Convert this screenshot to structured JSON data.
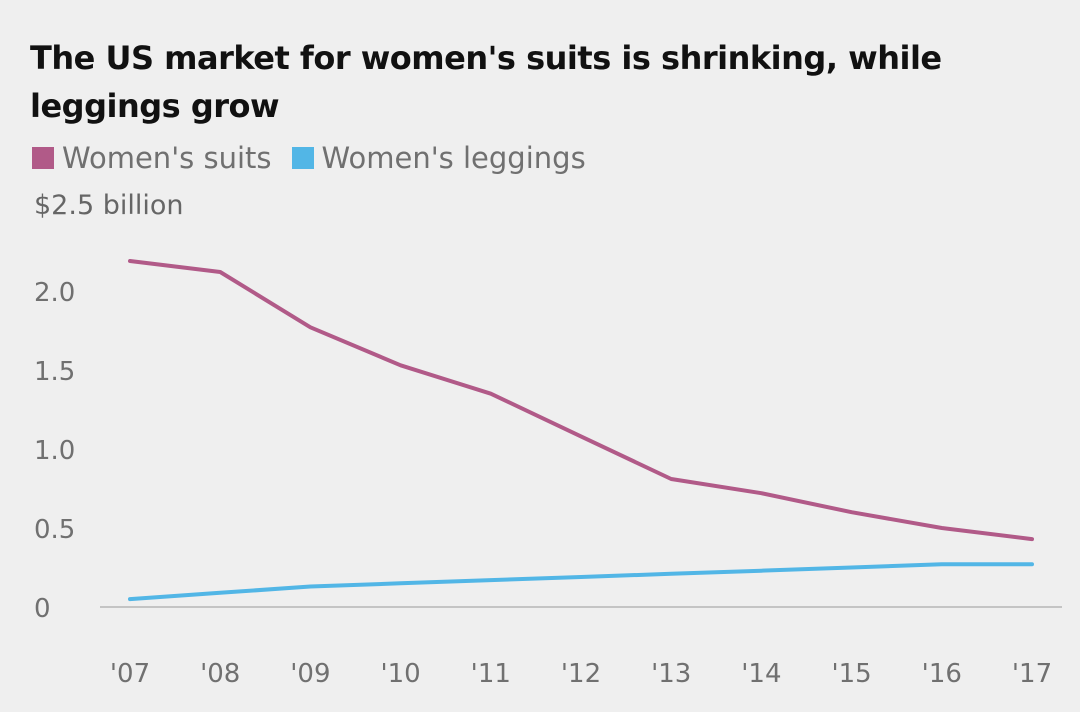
{
  "chart_data": {
    "type": "line",
    "title": "The US market for women's suits is shrinking, while leggings grow",
    "ylabel": "$2.5 billion",
    "xlabel": "",
    "categories": [
      "'07",
      "'08",
      "'09",
      "'10",
      "'11",
      "'12",
      "'13",
      "'14",
      "'15",
      "'16",
      "'17"
    ],
    "ylim": [
      0,
      2.5
    ],
    "y_ticks": [
      {
        "value": 0,
        "label": "0"
      },
      {
        "value": 0.5,
        "label": "0.5"
      },
      {
        "value": 1.0,
        "label": "1.0"
      },
      {
        "value": 1.5,
        "label": "1.5"
      },
      {
        "value": 2.0,
        "label": "2.0"
      }
    ],
    "grid": false,
    "legend_position": "top-left",
    "series": [
      {
        "name": "Women's suits",
        "color": "#b15a88",
        "values": [
          2.19,
          2.12,
          1.77,
          1.53,
          1.35,
          1.08,
          0.81,
          0.72,
          0.6,
          0.5,
          0.43
        ]
      },
      {
        "name": "Women's leggings",
        "color": "#52b6e6",
        "values": [
          0.05,
          0.09,
          0.13,
          0.15,
          0.17,
          0.19,
          0.21,
          0.23,
          0.25,
          0.27,
          0.27
        ]
      }
    ]
  }
}
